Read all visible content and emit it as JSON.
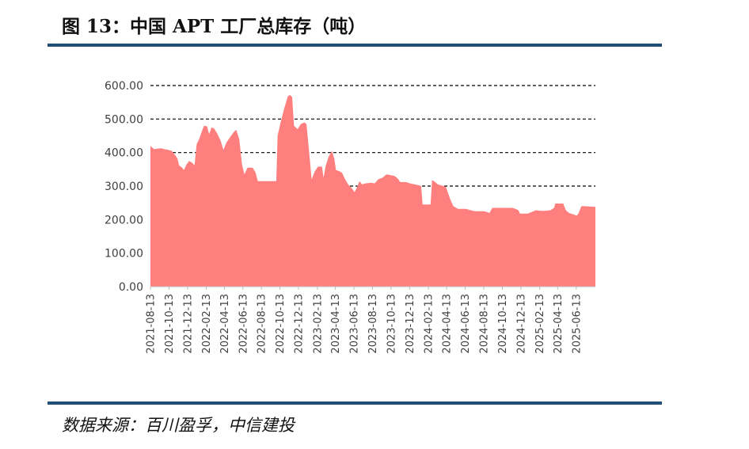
{
  "figure": {
    "title": "图 13：中国 APT 工厂总库存（吨）",
    "source": "数据来源：百川盈孚，中信建投"
  },
  "chart_data": {
    "type": "area",
    "title": "",
    "xlabel": "",
    "ylabel": "",
    "ylim": [
      0,
      600
    ],
    "yticks": [
      "0.00",
      "100.00",
      "200.00",
      "300.00",
      "400.00",
      "500.00",
      "600.00"
    ],
    "grid": "horizontal dashed at 300, 400, 500, 600",
    "legend": "none",
    "color": "#ff7f7f",
    "x_tick_labels": [
      "2021-08-13",
      "2021-10-13",
      "2021-12-13",
      "2022-02-13",
      "2022-04-13",
      "2022-06-13",
      "2022-08-13",
      "2022-10-13",
      "2022-12-13",
      "2023-02-13",
      "2023-04-13",
      "2023-06-13",
      "2023-08-13",
      "2023-10-13",
      "2023-12-13",
      "2024-02-13",
      "2024-04-13",
      "2024-06-13",
      "2024-08-13",
      "2024-10-13",
      "2024-12-13",
      "2025-02-13",
      "2025-04-13",
      "2025-06-13"
    ],
    "x_range": [
      "2021-08-13",
      "2025-08-15"
    ],
    "series": [
      {
        "points": [
          [
            "2021-08-13",
            420
          ],
          [
            "2021-08-25",
            410
          ],
          [
            "2021-09-05",
            412
          ],
          [
            "2021-09-18",
            413
          ],
          [
            "2021-09-28",
            410
          ],
          [
            "2021-10-10",
            408
          ],
          [
            "2021-10-22",
            405
          ],
          [
            "2021-11-02",
            393
          ],
          [
            "2021-11-10",
            382
          ],
          [
            "2021-11-15",
            362
          ],
          [
            "2021-11-25",
            355
          ],
          [
            "2021-12-01",
            348
          ],
          [
            "2021-12-10",
            365
          ],
          [
            "2021-12-18",
            375
          ],
          [
            "2021-12-28",
            370
          ],
          [
            "2022-01-05",
            362
          ],
          [
            "2022-01-12",
            425
          ],
          [
            "2022-01-20",
            440
          ],
          [
            "2022-01-28",
            460
          ],
          [
            "2022-02-05",
            480
          ],
          [
            "2022-02-15",
            478
          ],
          [
            "2022-02-22",
            455
          ],
          [
            "2022-03-02",
            475
          ],
          [
            "2022-03-10",
            472
          ],
          [
            "2022-03-20",
            458
          ],
          [
            "2022-04-01",
            435
          ],
          [
            "2022-04-10",
            408
          ],
          [
            "2022-04-20",
            430
          ],
          [
            "2022-05-01",
            445
          ],
          [
            "2022-05-15",
            462
          ],
          [
            "2022-05-22",
            468
          ],
          [
            "2022-06-01",
            440
          ],
          [
            "2022-06-10",
            365
          ],
          [
            "2022-06-18",
            335
          ],
          [
            "2022-06-28",
            355
          ],
          [
            "2022-07-15",
            355
          ],
          [
            "2022-07-25",
            340
          ],
          [
            "2022-08-01",
            315
          ],
          [
            "2022-09-15",
            315
          ],
          [
            "2022-10-01",
            315
          ],
          [
            "2022-10-05",
            450
          ],
          [
            "2022-10-15",
            490
          ],
          [
            "2022-10-28",
            535
          ],
          [
            "2022-11-08",
            568
          ],
          [
            "2022-11-15",
            572
          ],
          [
            "2022-11-22",
            565
          ],
          [
            "2022-11-28",
            480
          ],
          [
            "2022-12-10",
            470
          ],
          [
            "2022-12-20",
            485
          ],
          [
            "2023-01-01",
            490
          ],
          [
            "2023-01-08",
            485
          ],
          [
            "2023-01-15",
            418
          ],
          [
            "2023-01-25",
            320
          ],
          [
            "2023-02-05",
            345
          ],
          [
            "2023-02-15",
            358
          ],
          [
            "2023-02-28",
            358
          ],
          [
            "2023-03-05",
            325
          ],
          [
            "2023-03-12",
            360
          ],
          [
            "2023-03-22",
            388
          ],
          [
            "2023-04-02",
            405
          ],
          [
            "2023-04-10",
            380
          ],
          [
            "2023-04-15",
            348
          ],
          [
            "2023-04-25",
            345
          ],
          [
            "2023-05-05",
            340
          ],
          [
            "2023-05-15",
            320
          ],
          [
            "2023-05-25",
            305
          ],
          [
            "2023-06-05",
            295
          ],
          [
            "2023-06-15",
            282
          ],
          [
            "2023-06-25",
            300
          ],
          [
            "2023-07-01",
            315
          ],
          [
            "2023-07-10",
            305
          ],
          [
            "2023-07-20",
            308
          ],
          [
            "2023-08-10",
            310
          ],
          [
            "2023-08-20",
            308
          ],
          [
            "2023-09-01",
            320
          ],
          [
            "2023-09-15",
            325
          ],
          [
            "2023-09-28",
            335
          ],
          [
            "2023-10-10",
            333
          ],
          [
            "2023-10-25",
            330
          ],
          [
            "2023-11-05",
            322
          ],
          [
            "2023-11-12",
            312
          ],
          [
            "2023-12-01",
            312
          ],
          [
            "2023-12-15",
            308
          ],
          [
            "2024-01-10",
            303
          ],
          [
            "2024-01-20",
            300
          ],
          [
            "2024-01-25",
            245
          ],
          [
            "2024-02-20",
            245
          ],
          [
            "2024-02-25",
            318
          ],
          [
            "2024-03-05",
            313
          ],
          [
            "2024-03-15",
            305
          ],
          [
            "2024-04-10",
            298
          ],
          [
            "2024-04-25",
            260
          ],
          [
            "2024-05-05",
            240
          ],
          [
            "2024-05-20",
            232
          ],
          [
            "2024-06-15",
            232
          ],
          [
            "2024-07-01",
            228
          ],
          [
            "2024-07-15",
            225
          ],
          [
            "2024-08-15",
            225
          ],
          [
            "2024-09-01",
            220
          ],
          [
            "2024-09-10",
            235
          ],
          [
            "2024-10-15",
            235
          ],
          [
            "2024-11-15",
            235
          ],
          [
            "2024-11-25",
            232
          ],
          [
            "2024-12-05",
            228
          ],
          [
            "2024-12-10",
            218
          ],
          [
            "2025-01-05",
            218
          ],
          [
            "2025-01-20",
            224
          ],
          [
            "2025-02-01",
            228
          ],
          [
            "2025-02-15",
            226
          ],
          [
            "2025-03-01",
            226
          ],
          [
            "2025-03-20",
            228
          ],
          [
            "2025-04-01",
            235
          ],
          [
            "2025-04-05",
            248
          ],
          [
            "2025-05-01",
            248
          ],
          [
            "2025-05-10",
            228
          ],
          [
            "2025-05-20",
            220
          ],
          [
            "2025-06-15",
            212
          ],
          [
            "2025-06-20",
            218
          ],
          [
            "2025-06-30",
            240
          ],
          [
            "2025-07-10",
            240
          ],
          [
            "2025-08-15",
            238
          ]
        ]
      }
    ]
  }
}
